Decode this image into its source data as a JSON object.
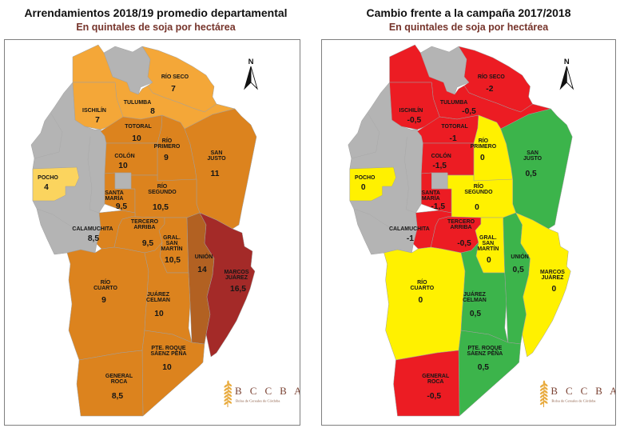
{
  "left_map": {
    "title": "Arrendamientos 2018/19 promedio departamental",
    "subtitle": "En quintales de soja por hectárea"
  },
  "right_map": {
    "title": "Cambio frente a la campaña 2017/2018",
    "subtitle": "En quintales de soja por hectárea"
  },
  "north_label": "N",
  "logo": {
    "acronym": "B C C B A",
    "name": "Bolsa de Cereales de Córdoba"
  },
  "colors": {
    "no_data_gray": "#b4b4b4",
    "left_pale_yellow": "#FBD45E",
    "left_light_orange": "#F4A738",
    "left_orange": "#DC831E",
    "left_brown": "#B26122",
    "left_dark_red": "#A42A28",
    "right_red": "#EC1C23",
    "right_yellow": "#FFF100",
    "right_green": "#3CB44B"
  },
  "departments": [
    {
      "id": "rio_seco",
      "label": [
        "RÍO SECO"
      ],
      "left_value": "7",
      "right_value": "-2",
      "left_color": "#F4A738",
      "right_color": "#EC1C23"
    },
    {
      "id": "tulumba",
      "label": [
        "TULUMBA"
      ],
      "left_value": "8",
      "right_value": "-0,5",
      "left_color": "#F4A738",
      "right_color": "#EC1C23"
    },
    {
      "id": "ischilin",
      "label": [
        "ISCHILÍN"
      ],
      "left_value": "7",
      "right_value": "-0,5",
      "left_color": "#F4A738",
      "right_color": "#EC1C23"
    },
    {
      "id": "totoral",
      "label": [
        "TOTORAL"
      ],
      "left_value": "10",
      "right_value": "-1",
      "left_color": "#DC831E",
      "right_color": "#EC1C23"
    },
    {
      "id": "rio_primero",
      "label": [
        "RÍO",
        "PRIMERO"
      ],
      "left_value": "9",
      "right_value": "0",
      "left_color": "#DC831E",
      "right_color": "#FFF100"
    },
    {
      "id": "san_justo",
      "label": [
        "SAN",
        "JUSTO"
      ],
      "left_value": "11",
      "right_value": "0,5",
      "left_color": "#DC831E",
      "right_color": "#3CB44B"
    },
    {
      "id": "colon",
      "label": [
        "COLÓN"
      ],
      "left_value": "10",
      "right_value": "-1,5",
      "left_color": "#DC831E",
      "right_color": "#EC1C23"
    },
    {
      "id": "pocho",
      "label": [
        "POCHO"
      ],
      "left_value": "4",
      "right_value": "0",
      "left_color": "#FBD45E",
      "right_color": "#FFF100"
    },
    {
      "id": "santa_maria",
      "label": [
        "SANTA",
        "MARÍA"
      ],
      "left_value": "9,5",
      "right_value": "-1,5",
      "left_color": "#DC831E",
      "right_color": "#EC1C23"
    },
    {
      "id": "rio_segundo",
      "label": [
        "RÍO",
        "SEGUNDO"
      ],
      "left_value": "10,5",
      "right_value": "0",
      "left_color": "#DC831E",
      "right_color": "#FFF100"
    },
    {
      "id": "calamuchita",
      "label": [
        "CALAMUCHITA"
      ],
      "left_value": "8,5",
      "right_value": "-1",
      "left_color": "#DC831E",
      "right_color": "#EC1C23"
    },
    {
      "id": "tercero_arriba",
      "label": [
        "TERCERO",
        "ARRIBA"
      ],
      "left_value": "9,5",
      "right_value": "-0,5",
      "left_color": "#DC831E",
      "right_color": "#EC1C23"
    },
    {
      "id": "gral_san_martin",
      "label": [
        "GRAL.",
        "SAN",
        "MARTÍN"
      ],
      "left_value": "10,5",
      "right_value": "0",
      "left_color": "#DC831E",
      "right_color": "#FFF100"
    },
    {
      "id": "union",
      "label": [
        "UNIÓN"
      ],
      "left_value": "14",
      "right_value": "0,5",
      "left_color": "#B26122",
      "right_color": "#3CB44B"
    },
    {
      "id": "marcos_juarez",
      "label": [
        "MARCOS",
        "JUÁREZ"
      ],
      "left_value": "16,5",
      "right_value": "0",
      "left_color": "#A42A28",
      "right_color": "#FFF100"
    },
    {
      "id": "rio_cuarto",
      "label": [
        "RÍO",
        "CUARTO"
      ],
      "left_value": "9",
      "right_value": "0",
      "left_color": "#DC831E",
      "right_color": "#FFF100"
    },
    {
      "id": "juarez_celman",
      "label": [
        "JUÁREZ",
        "CELMAN"
      ],
      "left_value": "10",
      "right_value": "0,5",
      "left_color": "#DC831E",
      "right_color": "#3CB44B"
    },
    {
      "id": "prsp",
      "label": [
        "PTE. ROQUE",
        "SÁENZ PEÑA"
      ],
      "left_value": "10",
      "right_value": "0,5",
      "left_color": "#DC831E",
      "right_color": "#3CB44B"
    },
    {
      "id": "general_roca",
      "label": [
        "GENERAL",
        "ROCA"
      ],
      "left_value": "8,5",
      "right_value": "-0,5",
      "left_color": "#DC831E",
      "right_color": "#EC1C23"
    }
  ]
}
